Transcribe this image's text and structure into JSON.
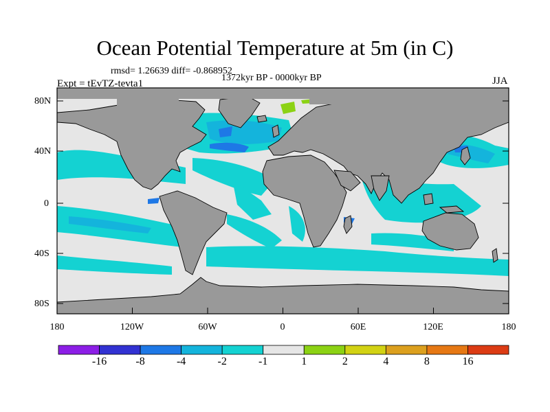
{
  "title": "Ocean Potential Temperature at 5m (in C)",
  "stats": "rmsd= 1.26639  diff= -0.868952",
  "period": "1372kyr BP - 0000kyr BP",
  "experiment": "Expt = tEvTZ-tevta1",
  "season": "JJA",
  "map": {
    "lat_ticks": [
      "80N",
      "40N",
      "0",
      "40S",
      "80S"
    ],
    "lon_ticks": [
      "180",
      "120W",
      "60W",
      "0",
      "60E",
      "120E",
      "180"
    ]
  },
  "colorbar": {
    "colors": [
      "#8c1ee6",
      "#3232d2",
      "#1e78e6",
      "#14b4dc",
      "#14d2d2",
      "#e6e6e6",
      "#8cd214",
      "#d2d214",
      "#dca01e",
      "#e67814",
      "#dc3c14"
    ],
    "labels": [
      "-16",
      "-8",
      "-4",
      "-2",
      "-1",
      "1",
      "2",
      "4",
      "8",
      "16"
    ]
  },
  "palette": {
    "land": "#999999",
    "no_change": "#e6e6e6",
    "cool_light": "#14d2d2",
    "cool_mid": "#14b4dc",
    "cool_dark": "#1e78e6",
    "warm": "#8cd214"
  }
}
